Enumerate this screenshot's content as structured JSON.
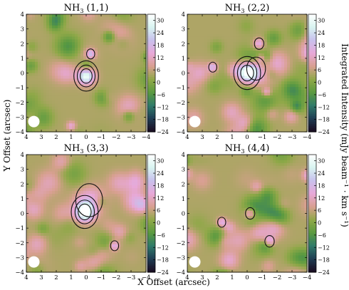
{
  "chart_data": [
    {
      "type": "heatmap",
      "title_main": "NH",
      "title_sub": "3",
      "title_rest": " (1,1)",
      "x_range": [
        4,
        -4
      ],
      "y_range": [
        -4,
        4
      ],
      "x_ticks": [
        "4",
        "3",
        "2",
        "1",
        "0",
        "−1",
        "−2",
        "−3",
        "−4"
      ],
      "y_ticks": [
        "4",
        "3",
        "2",
        "1",
        "0",
        "−1",
        "−2",
        "−3",
        "−4"
      ],
      "colorbar": {
        "min": -24,
        "max": 33,
        "ticks": [
          "30",
          "24",
          "18",
          "12",
          "6",
          "0",
          "−6",
          "−12",
          "−18",
          "−24"
        ]
      },
      "beam": {
        "x": 3.5,
        "y": -3.3
      },
      "emission_peaks": [
        {
          "x": 0.0,
          "y": -0.2,
          "peak": 28,
          "spread": 0.55
        },
        {
          "x": -0.3,
          "y": 1.3,
          "peak": 14,
          "spread": 0.3
        },
        {
          "x": 1.0,
          "y": -3.6,
          "peak": 10,
          "spread": 0.3
        }
      ]
    },
    {
      "type": "heatmap",
      "title_main": "NH",
      "title_sub": "3",
      "title_rest": " (2,2)",
      "x_range": [
        4,
        -4
      ],
      "y_range": [
        -4,
        4
      ],
      "x_ticks": [
        "4",
        "3",
        "2",
        "1",
        "0",
        "−1",
        "−2",
        "−3",
        "−4"
      ],
      "y_ticks": [
        "4",
        "3",
        "2",
        "1",
        "0",
        "−1",
        "−2",
        "−3",
        "−4"
      ],
      "colorbar": {
        "min": -24,
        "max": 33,
        "ticks": [
          "30",
          "24",
          "18",
          "12",
          "6",
          "0",
          "−6",
          "−12",
          "−18",
          "−24"
        ]
      },
      "beam": {
        "x": 3.5,
        "y": -3.3
      },
      "emission_peaks": [
        {
          "x": 0.0,
          "y": 0.0,
          "peak": 26,
          "spread": 0.6
        },
        {
          "x": -0.6,
          "y": 0.3,
          "peak": 12,
          "spread": 0.7
        },
        {
          "x": -0.8,
          "y": 2.0,
          "peak": 13,
          "spread": 0.35
        },
        {
          "x": -0.9,
          "y": 1.0,
          "peak": 10,
          "spread": 0.3
        },
        {
          "x": 2.3,
          "y": 0.4,
          "peak": 14,
          "spread": 0.3
        },
        {
          "x": -1.3,
          "y": -1.3,
          "peak": 11,
          "spread": 0.3
        }
      ]
    },
    {
      "type": "heatmap",
      "title_main": "NH",
      "title_sub": "3",
      "title_rest": " (3,3)",
      "x_range": [
        4,
        -4
      ],
      "y_range": [
        -4,
        4
      ],
      "x_ticks": [
        "4",
        "3",
        "2",
        "1",
        "0",
        "−1",
        "−2",
        "−3",
        "−4"
      ],
      "y_ticks": [
        "4",
        "3",
        "2",
        "1",
        "0",
        "−1",
        "−2",
        "−3",
        "−4"
      ],
      "colorbar": {
        "min": -24,
        "max": 33,
        "ticks": [
          "30",
          "24",
          "18",
          "12",
          "6",
          "0",
          "−6",
          "−12",
          "−18",
          "−24"
        ]
      },
      "beam": {
        "x": 3.5,
        "y": -3.3
      },
      "emission_peaks": [
        {
          "x": 0.1,
          "y": 0.1,
          "peak": 30,
          "spread": 0.6
        },
        {
          "x": -0.2,
          "y": 0.9,
          "peak": 12,
          "spread": 1.0
        },
        {
          "x": -1.9,
          "y": -2.2,
          "peak": 13,
          "spread": 0.3
        }
      ]
    },
    {
      "type": "heatmap",
      "title_main": "NH",
      "title_sub": "3",
      "title_rest": " (4,4)",
      "x_range": [
        4,
        -4
      ],
      "y_range": [
        -4,
        4
      ],
      "x_ticks": [
        "4",
        "3",
        "2",
        "1",
        "0",
        "−1",
        "−2",
        "−3",
        "−4"
      ],
      "y_ticks": [
        "4",
        "3",
        "2",
        "1",
        "0",
        "−1",
        "−2",
        "−3",
        "−4"
      ],
      "colorbar": {
        "min": -24,
        "max": 33,
        "ticks": [
          "30",
          "24",
          "18",
          "12",
          "6",
          "0",
          "−6",
          "−12",
          "−18",
          "−24"
        ]
      },
      "beam": {
        "x": 3.5,
        "y": -3.3
      },
      "emission_peaks": [
        {
          "x": -0.2,
          "y": 0.0,
          "peak": 13,
          "spread": 0.35
        },
        {
          "x": 1.7,
          "y": -0.6,
          "peak": 12,
          "spread": 0.3
        },
        {
          "x": -1.5,
          "y": -1.9,
          "peak": 12,
          "spread": 0.35
        },
        {
          "x": -0.8,
          "y": -1.4,
          "peak": 8,
          "spread": 0.6
        }
      ]
    }
  ],
  "figure": {
    "xlabel": "X Offset (arcsec)",
    "ylabel": "Y Offset (arcsec)",
    "colorbar_label": "Integrated Intensity (mJy beam⁻¹ · km s⁻¹)",
    "colormap": [
      "#1a0b20",
      "#1f3c52",
      "#2f7a6a",
      "#5a9a40",
      "#8fa848",
      "#d8a090",
      "#e8a8d8",
      "#c8c0ec",
      "#d8f4f0",
      "#ffffff"
    ]
  }
}
